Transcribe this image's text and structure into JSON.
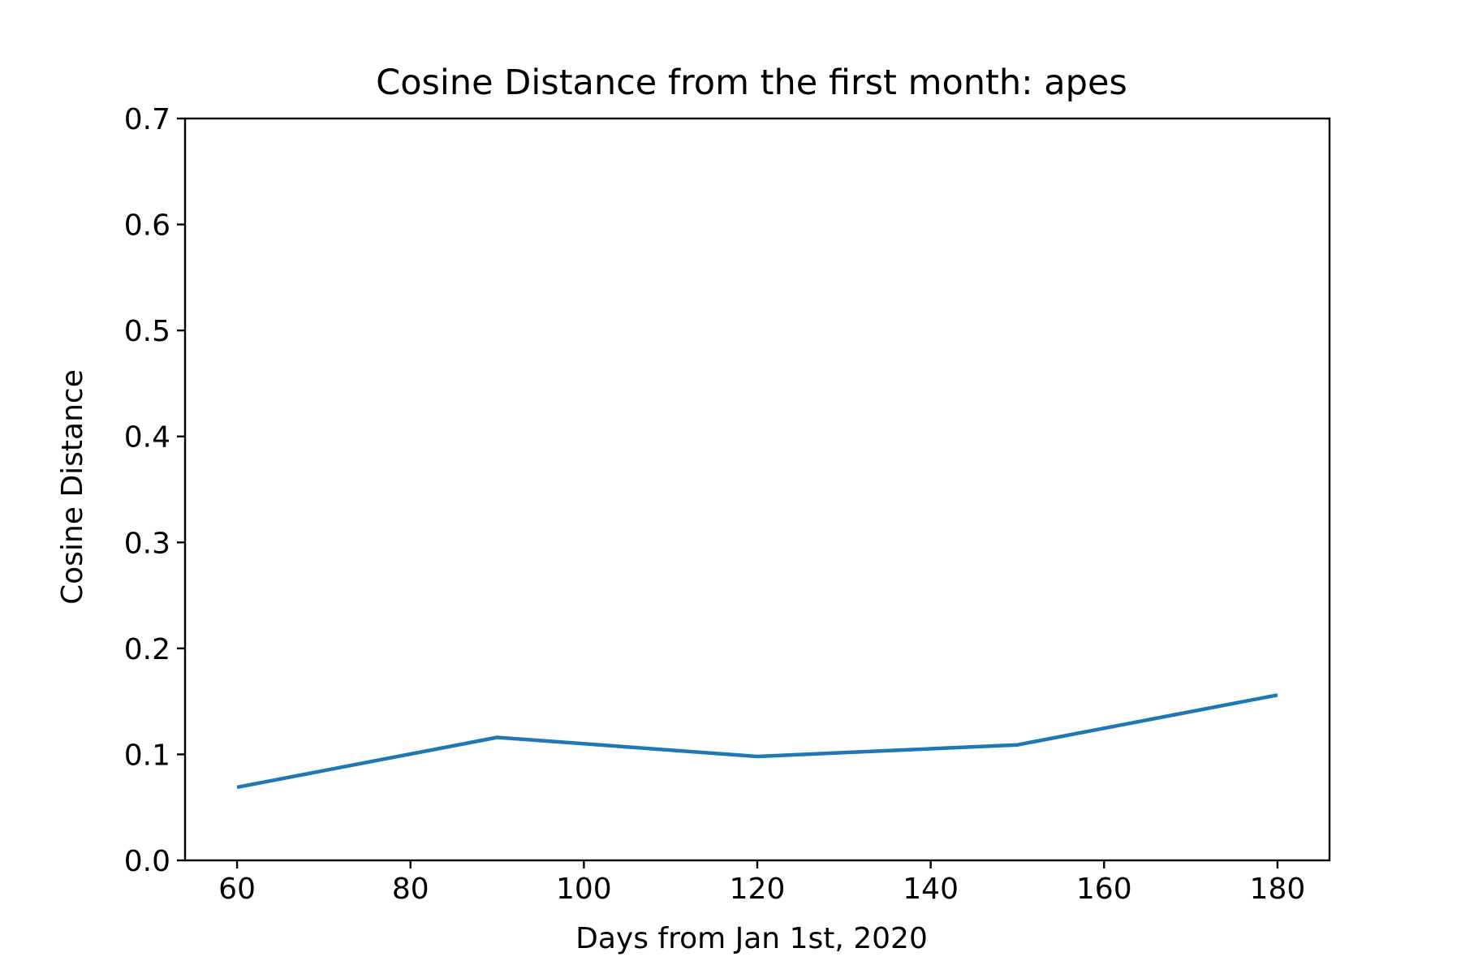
{
  "chart_data": {
    "type": "line",
    "title": "Cosine Distance from the first month: apes",
    "xlabel": "Days from Jan 1st, 2020",
    "ylabel": "Cosine Distance",
    "x": [
      60,
      90,
      120,
      150,
      180
    ],
    "series": [
      {
        "values": [
          0.069,
          0.116,
          0.098,
          0.109,
          0.156
        ],
        "color": "#1f77b4"
      }
    ],
    "xlim": [
      54,
      186
    ],
    "ylim": [
      0.0,
      0.7
    ],
    "xticks": [
      60,
      80,
      100,
      120,
      140,
      160,
      180
    ],
    "xtick_labels": [
      "60",
      "80",
      "100",
      "120",
      "140",
      "160",
      "180"
    ],
    "yticks": [
      0.0,
      0.1,
      0.2,
      0.3,
      0.4,
      0.5,
      0.6,
      0.7
    ],
    "ytick_labels": [
      "0.0",
      "0.1",
      "0.2",
      "0.3",
      "0.4",
      "0.5",
      "0.6",
      "0.7"
    ],
    "grid": false,
    "legend": "none"
  }
}
